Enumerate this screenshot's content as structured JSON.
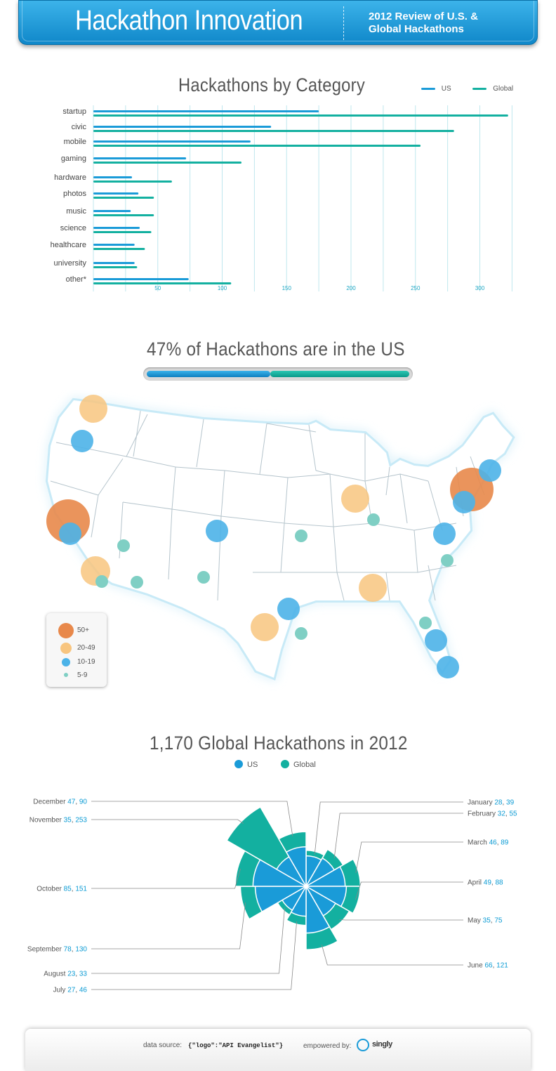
{
  "header": {
    "title": "Hackathon Innovation",
    "subtitle_line1": "2012 Review of U.S. &",
    "subtitle_line2": "Global Hackathons",
    "colors": {
      "gradient_top": "#3cb3ea",
      "gradient_bottom": "#0f87c9"
    }
  },
  "colors": {
    "us": "#1a9bd8",
    "global": "#13b0a0",
    "big": "#e8884a",
    "mid": "#f8c57f",
    "small_blue": "#4cb3e8",
    "tiny": "#7fcfc4"
  },
  "chart_data": [
    {
      "type": "bar",
      "title": "Hackathons by Category",
      "categories": [
        "startup",
        "civic",
        "mobile",
        "gaming",
        "hardware",
        "photos",
        "music",
        "science",
        "healthcare",
        "university",
        "other*"
      ],
      "series": [
        {
          "name": "US",
          "values": [
            175,
            138,
            122,
            72,
            30,
            35,
            29,
            36,
            32,
            32,
            74
          ]
        },
        {
          "name": "Global",
          "values": [
            322,
            280,
            254,
            115,
            61,
            47,
            47,
            45,
            40,
            34,
            107
          ]
        }
      ],
      "xticks": [
        "50",
        "100",
        "150",
        "200",
        "250",
        "300"
      ],
      "xlim": [
        0,
        325
      ],
      "grid": true,
      "legend": "top-right"
    },
    {
      "type": "map",
      "title": "47% of Hackathons are in the US",
      "us_share_percent": 47,
      "legend": [
        "50+",
        "20-49",
        "10-19",
        "5-9"
      ]
    },
    {
      "type": "pie",
      "subtype": "polar-area",
      "title": "1,170 Global Hackathons in 2012",
      "legend": [
        "US",
        "Global"
      ],
      "series": [
        {
          "name": "US",
          "values": [
            28,
            32,
            46,
            49,
            35,
            66,
            27,
            23,
            78,
            85,
            35,
            47
          ]
        },
        {
          "name": "Global",
          "values": [
            39,
            55,
            89,
            88,
            75,
            121,
            46,
            33,
            130,
            151,
            253,
            90
          ]
        }
      ],
      "categories": [
        "January",
        "February",
        "March",
        "April",
        "May",
        "June",
        "July",
        "August",
        "September",
        "October",
        "November",
        "December"
      ]
    }
  ],
  "polar_labels": [
    {
      "month": "January",
      "us": "28",
      "global": "39"
    },
    {
      "month": "February",
      "us": "32",
      "global": "55"
    },
    {
      "month": "March",
      "us": "46",
      "global": "89"
    },
    {
      "month": "April",
      "us": "49",
      "global": "88"
    },
    {
      "month": "May",
      "us": "35",
      "global": "75"
    },
    {
      "month": "June",
      "us": "66",
      "global": "121"
    },
    {
      "month": "July",
      "us": "27",
      "global": "46"
    },
    {
      "month": "August",
      "us": "23",
      "global": "33"
    },
    {
      "month": "September",
      "us": "78",
      "global": "130"
    },
    {
      "month": "October",
      "us": "85",
      "global": "151"
    },
    {
      "month": "November",
      "us": "35",
      "global": "253"
    },
    {
      "month": "December",
      "us": "47",
      "global": "90"
    }
  ],
  "footer": {
    "data_source_label": "data source:",
    "data_source_value": "{\"logo\":\"API Evangelist\"}",
    "powered_label": "empowered by:",
    "brand": "singly"
  }
}
